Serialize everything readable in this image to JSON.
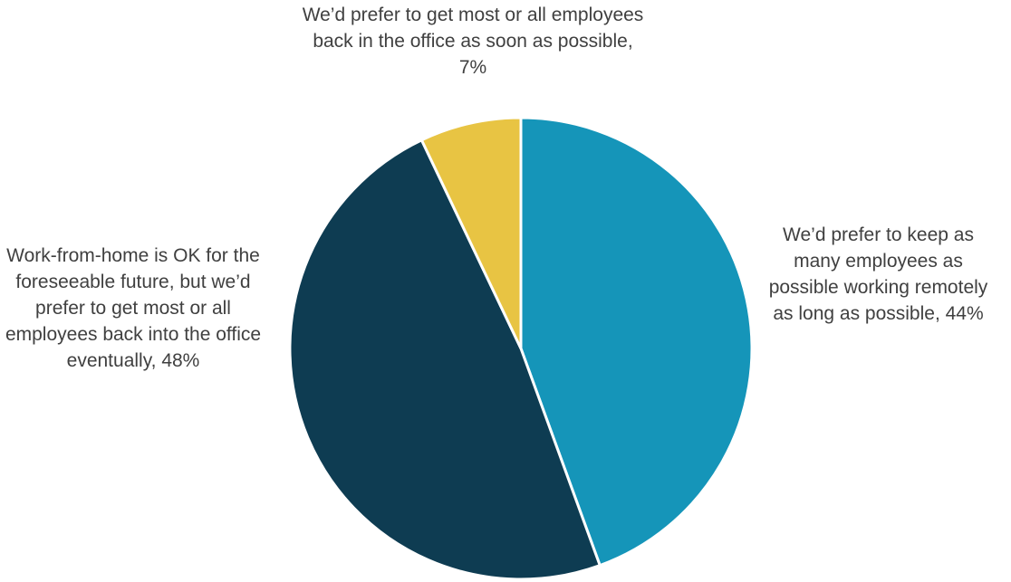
{
  "chart_data": {
    "type": "pie",
    "start_angle_deg": 0,
    "direction": "clockwise",
    "slices": [
      {
        "label": "We’d prefer to keep as many employees as possible working remotely as long as possible, 44%",
        "category": "We’d prefer to keep as many employees as possible working remotely as long as possible",
        "value": 44,
        "color": "#1595b9"
      },
      {
        "label": "Work-from-home is OK for the foreseeable future, but we’d prefer to get most or all employees back into the office eventually, 48%",
        "category": "Work-from-home is OK for the foreseeable future, but we’d prefer to get most or all employees back into the office eventually",
        "value": 48,
        "color": "#0e3c52"
      },
      {
        "label": "We’d prefer to get most or all employees back in the office as soon as possible, 7%",
        "category": "We’d prefer to get most or all employees back in the office as soon as possible",
        "value": 7,
        "color": "#e8c443"
      }
    ],
    "slice_border_color": "#ffffff"
  }
}
